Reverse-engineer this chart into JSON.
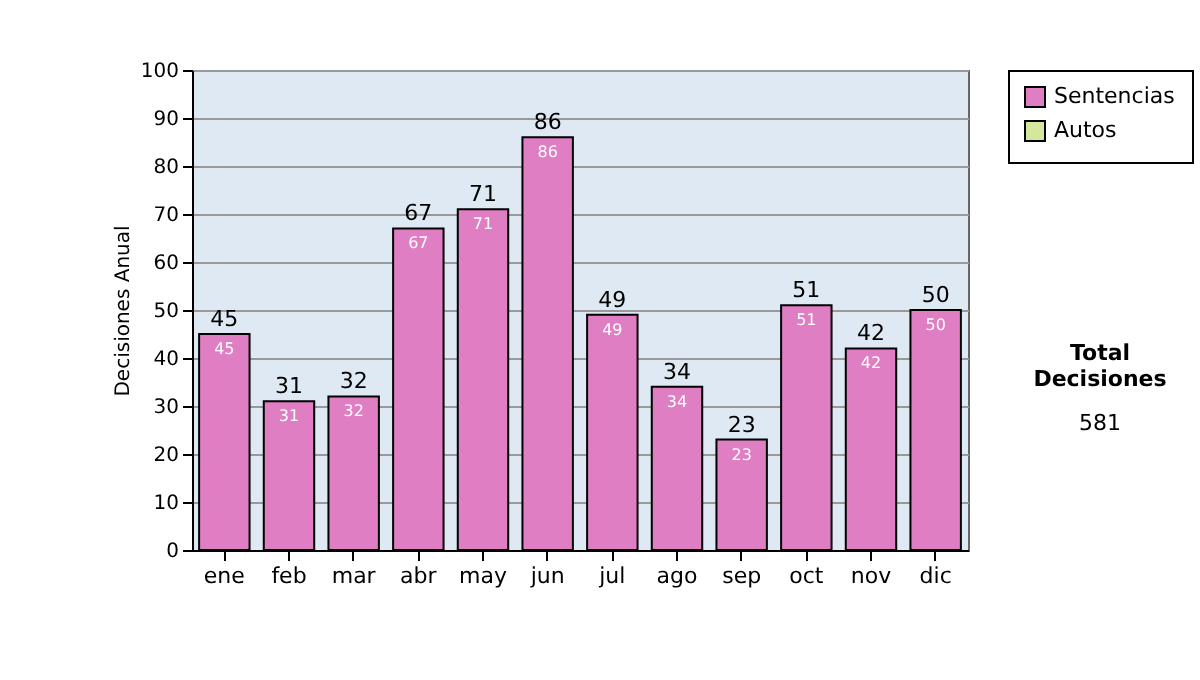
{
  "chart_data": {
    "type": "bar",
    "ylabel": "Decisiones Anual",
    "categories": [
      "ene",
      "feb",
      "mar",
      "abr",
      "may",
      "jun",
      "jul",
      "ago",
      "sep",
      "oct",
      "nov",
      "dic"
    ],
    "series": [
      {
        "name": "Sentencias",
        "color": "#e07ec4",
        "values": [
          45,
          31,
          32,
          67,
          71,
          86,
          49,
          34,
          23,
          51,
          42,
          50
        ]
      },
      {
        "name": "Autos",
        "color": "#d4e89c",
        "values": [
          null,
          null,
          null,
          null,
          null,
          null,
          null,
          null,
          null,
          null,
          null,
          null
        ]
      }
    ],
    "ylim": [
      0,
      100
    ],
    "yticks": [
      0,
      10,
      20,
      30,
      40,
      50,
      60,
      70,
      80,
      90,
      100
    ],
    "grid": "y",
    "legend": "right",
    "data_labels": true,
    "annotations": [
      "Total Decisiones",
      "581",
      {
        "text": "45",
        "x": "ene",
        "y": 45
      },
      {
        "text": "31",
        "x": "feb",
        "y": 31
      },
      {
        "text": "32",
        "x": "mar",
        "y": 32
      },
      {
        "text": "67",
        "x": "abr",
        "y": 67
      },
      {
        "text": "71",
        "x": "may",
        "y": 71
      },
      {
        "text": "86",
        "x": "jun",
        "y": 86
      },
      {
        "text": "49",
        "x": "jul",
        "y": 49
      },
      {
        "text": "34",
        "x": "ago",
        "y": 34
      },
      {
        "text": "23",
        "x": "sep",
        "y": 23
      },
      {
        "text": "51",
        "x": "oct",
        "y": 51
      },
      {
        "text": "42",
        "x": "nov",
        "y": 42
      },
      {
        "text": "50",
        "x": "dic",
        "y": 50
      }
    ]
  }
}
